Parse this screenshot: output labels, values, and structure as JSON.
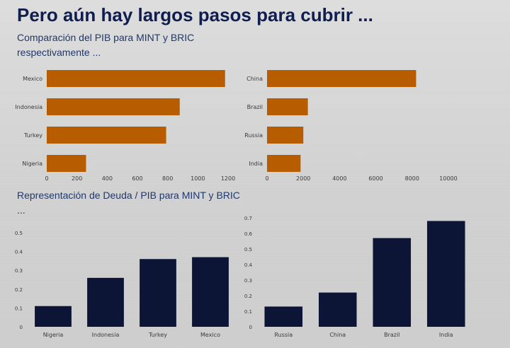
{
  "slide": {
    "title": "Pero aún hay largos pasos para cubrir ...",
    "subtitle_gdp": "Comparación del PIB para MINT y BRIC respectivamente ...",
    "subtitle_debt": "Representación de Deuda / PIB para MINT y BRIC ..."
  },
  "colors": {
    "title": "#101d4f",
    "gdp_bar": "#b85c00",
    "debt_bar": "#0d1536",
    "background": "#d4d4d4"
  },
  "chart_data": [
    {
      "id": "gdp-mint",
      "type": "bar",
      "orientation": "horizontal",
      "categories": [
        "Mexico",
        "Indonesia",
        "Turkey",
        "Nigeria"
      ],
      "values": [
        1180,
        880,
        790,
        260
      ],
      "xlim": [
        0,
        1200
      ],
      "ticks": [
        0,
        200,
        400,
        600,
        800,
        1000,
        1200
      ],
      "grid": false,
      "legend": "none"
    },
    {
      "id": "gdp-bric",
      "type": "bar",
      "orientation": "horizontal",
      "categories": [
        "China",
        "Brazil",
        "Russia",
        "India"
      ],
      "values": [
        8220,
        2250,
        2000,
        1850
      ],
      "xlim": [
        0,
        10000
      ],
      "ticks": [
        0,
        2000,
        4000,
        6000,
        8000,
        10000
      ],
      "grid": false,
      "legend": "none"
    },
    {
      "id": "debt-mint",
      "type": "bar",
      "orientation": "vertical",
      "categories": [
        "Nigeria",
        "Indonesia",
        "Turkey",
        "Mexico"
      ],
      "values": [
        0.11,
        0.26,
        0.36,
        0.37
      ],
      "ylim": [
        0,
        0.5
      ],
      "ticks": [
        "0",
        "0.1",
        "0.2",
        "0.3",
        "0.4",
        "0.5"
      ],
      "grid": false,
      "legend": "none"
    },
    {
      "id": "debt-bric",
      "type": "bar",
      "orientation": "vertical",
      "categories": [
        "Russia",
        "China",
        "Brazil",
        "India"
      ],
      "values": [
        0.13,
        0.22,
        0.57,
        0.68
      ],
      "ylim": [
        0,
        0.7
      ],
      "ticks": [
        "0",
        "0.1",
        "0.2",
        "0.3",
        "0.4",
        "0.5",
        "0.6",
        "0.7"
      ],
      "grid": false,
      "legend": "none"
    }
  ]
}
